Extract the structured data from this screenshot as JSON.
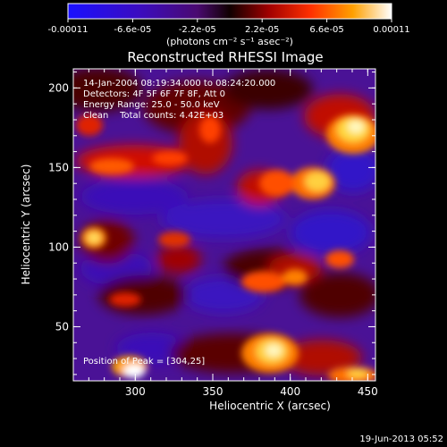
{
  "chart_data": {
    "type": "heatmap",
    "title": "Reconstructed RHESSI Image",
    "xlabel": "Heliocentric X (arcsec)",
    "ylabel": "Heliocentric Y (arcsec)",
    "xlim": [
      260,
      455
    ],
    "ylim": [
      16,
      212
    ],
    "x_ticks": [
      300,
      350,
      400,
      450
    ],
    "y_ticks": [
      50,
      100,
      150,
      200
    ],
    "colorbar": {
      "ticks": [
        "-0.00011",
        "-6.6e-05",
        "-2.2e-05",
        "2.2e-05",
        "6.6e-05",
        "0.00011"
      ],
      "units": "(photons cm⁻² s⁻¹ asec⁻²)",
      "range": [
        -0.00011,
        0.00011
      ]
    },
    "annotations": [
      "14-Jan-2004 08:19:34.000 to 08:24:20.000",
      "Detectors: 4F 5F 6F 7F 8F, Att 0",
      "Energy Range: 25.0 - 50.0 keV",
      "Clean    Total counts: 4.42E+03"
    ],
    "peak_label": "Position of Peak = [304,25]",
    "footer_date": "19-Jun-2013 05:52"
  }
}
